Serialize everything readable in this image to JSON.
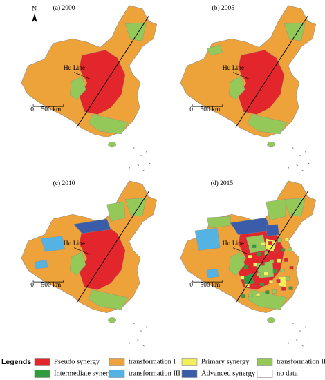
{
  "north_label": "N",
  "panels": [
    {
      "title": "(a) 2000",
      "hu_line": "Hu Line",
      "scale_zero": "0",
      "scale_label": "500 km"
    },
    {
      "title": "(b) 2005",
      "hu_line": "Hu Line",
      "scale_zero": "0",
      "scale_label": "500 km"
    },
    {
      "title": "(c) 2010",
      "hu_line": "Hu Line",
      "scale_zero": "0",
      "scale_label": "500 km"
    },
    {
      "title": "(d) 2015",
      "hu_line": "Hu Line",
      "scale_zero": "0",
      "scale_label": "500 km"
    }
  ],
  "legend": {
    "title": "Legends",
    "items": [
      {
        "label": "Pseudo synergy",
        "color": "#e3262b"
      },
      {
        "label": "Intermediate synergy",
        "color": "#2f9b3a"
      },
      {
        "label": "transformation I",
        "color": "#eea33a"
      },
      {
        "label": "transformation III",
        "color": "#55b3e3"
      },
      {
        "label": "Primary synergy",
        "color": "#f3ee5c"
      },
      {
        "label": "Advanced synergy",
        "color": "#3b5ca8"
      },
      {
        "label": "transformation II",
        "color": "#94c95a"
      },
      {
        "label": "no data",
        "color": "#ffffff"
      }
    ]
  }
}
